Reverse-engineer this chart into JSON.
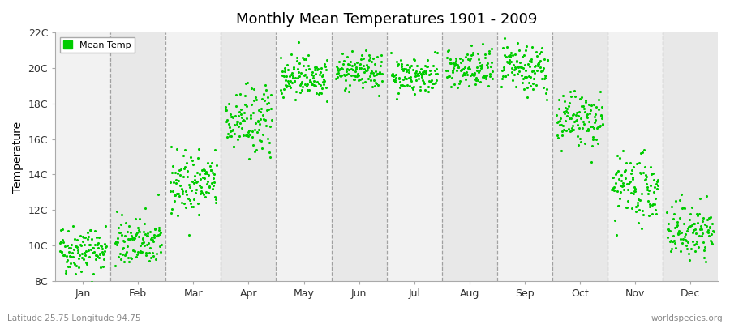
{
  "title": "Monthly Mean Temperatures 1901 - 2009",
  "ylabel": "Temperature",
  "ytick_labels": [
    "8C",
    "10C",
    "12C",
    "14C",
    "16C",
    "18C",
    "20C",
    "22C"
  ],
  "ytick_values": [
    8,
    10,
    12,
    14,
    16,
    18,
    20,
    22
  ],
  "ylim": [
    8,
    22
  ],
  "xlim": [
    0.5,
    12.5
  ],
  "month_labels": [
    "Jan",
    "Feb",
    "Mar",
    "Apr",
    "May",
    "Jun",
    "Jul",
    "Aug",
    "Sep",
    "Oct",
    "Nov",
    "Dec"
  ],
  "month_positions": [
    1,
    2,
    3,
    4,
    5,
    6,
    7,
    8,
    9,
    10,
    11,
    12
  ],
  "mean_temps": [
    9.8,
    10.2,
    13.5,
    17.0,
    19.6,
    19.8,
    19.6,
    19.9,
    19.9,
    17.0,
    13.2,
    10.8
  ],
  "std_temps": [
    0.7,
    0.7,
    0.9,
    1.0,
    0.6,
    0.5,
    0.5,
    0.6,
    0.7,
    0.8,
    0.9,
    0.8
  ],
  "dot_color": "#00CC00",
  "dot_size": 5,
  "background_color": "#FFFFFF",
  "col_bg_light": "#F2F2F2",
  "col_bg_dark": "#E8E8E8",
  "vline_color": "#999999",
  "legend_label": "Mean Temp",
  "subtitle_left": "Latitude 25.75 Longitude 94.75",
  "subtitle_right": "worldspecies.org",
  "n_years": 109,
  "seed": 42,
  "x_jitter": 0.42
}
